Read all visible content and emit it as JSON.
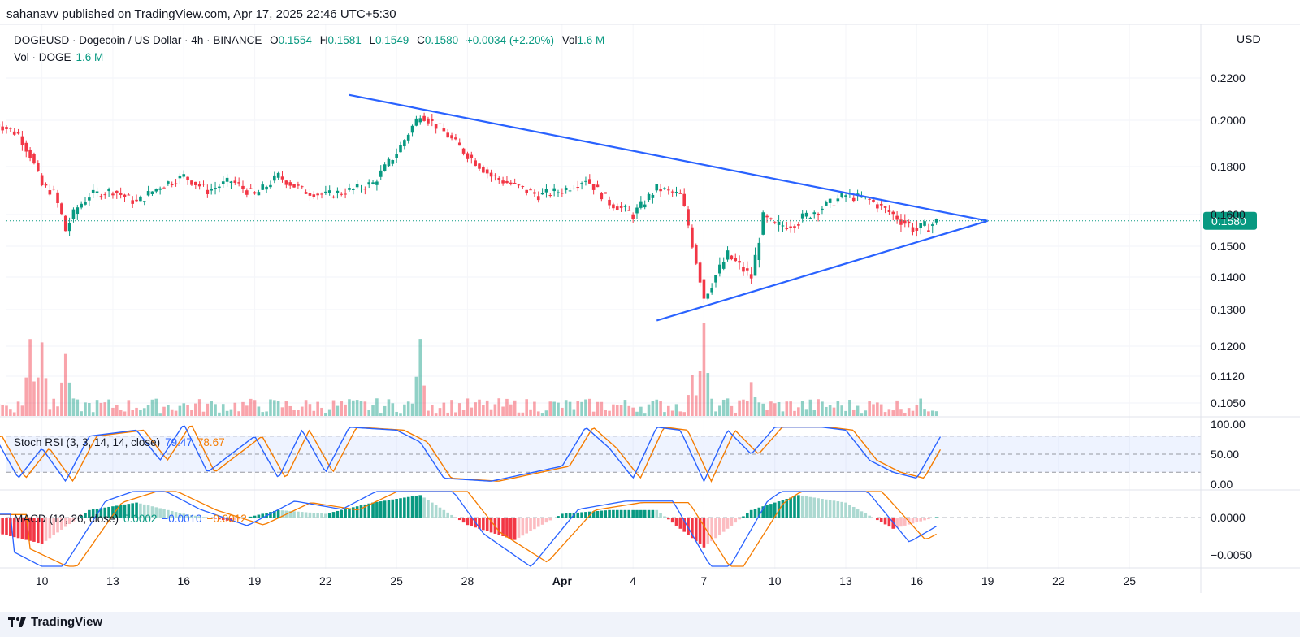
{
  "header": {
    "publisher": "sahanavv published on TradingView.com, Apr 17, 2025 22:46 UTC+5:30",
    "symbol": "DOGEUSD · Dogecoin / US Dollar · 4h · BINANCE",
    "o_label": "O",
    "o_value": "0.1554",
    "h_label": "H",
    "h_value": "0.1581",
    "l_label": "L",
    "l_value": "0.1549",
    "c_label": "C",
    "c_value": "0.1580",
    "change": "+0.0034 (+2.20%)",
    "vol_label": "Vol",
    "vol_value": "1.6 M",
    "vol_line_label": "Vol · DOGE",
    "vol_line_value": "1.6 M",
    "currency": "USD"
  },
  "stoch_rsi": {
    "label": "Stoch RSI (3, 3, 14, 14, close)",
    "k": "79.47",
    "d": "78.67",
    "axis": [
      "100.00",
      "50.00",
      "0.00"
    ]
  },
  "macd": {
    "label": "MACD (12, 26, close)",
    "hist": "0.0002",
    "macd": "−0.0010",
    "signal": "−0.0012",
    "axis": [
      "0.0000",
      "−0.0050"
    ]
  },
  "footer": {
    "brand": "TradingView"
  },
  "colors": {
    "up": "#089981",
    "down": "#f23645",
    "trend": "#2962ff",
    "signal": "#f57c00",
    "last_price_bg": "#089981"
  },
  "chart_data": {
    "type": "candlestick",
    "symbol": "DOGEUSD",
    "interval": "4h",
    "price_axis": [
      "0.2200",
      "0.2000",
      "0.1800",
      "0.1600",
      "0.1500",
      "0.1400",
      "0.1300",
      "0.1200",
      "0.1120",
      "0.1050"
    ],
    "price_axis_values": [
      0.22,
      0.2,
      0.18,
      0.16,
      0.15,
      0.14,
      0.13,
      0.12,
      0.112,
      0.105
    ],
    "x_ticks": [
      "10",
      "13",
      "16",
      "19",
      "22",
      "25",
      "28",
      "Apr",
      "4",
      "7",
      "10",
      "13",
      "16",
      "19",
      "22",
      "25"
    ],
    "last_price": 0.158,
    "last_price_label": "0.1580",
    "path": [
      [
        "2025-03-08",
        0.199
      ],
      [
        "2025-03-09",
        0.194
      ],
      [
        "2025-03-09 12:00",
        0.185
      ],
      [
        "2025-03-10",
        0.172
      ],
      [
        "2025-03-10 12:00",
        0.169
      ],
      [
        "2025-03-11",
        0.155
      ],
      [
        "2025-03-11 12:00",
        0.163
      ],
      [
        "2025-03-12",
        0.168
      ],
      [
        "2025-03-13",
        0.17
      ],
      [
        "2025-03-14",
        0.165
      ],
      [
        "2025-03-15",
        0.172
      ],
      [
        "2025-03-16",
        0.176
      ],
      [
        "2025-03-17",
        0.17
      ],
      [
        "2025-03-18",
        0.174
      ],
      [
        "2025-03-19",
        0.168
      ],
      [
        "2025-03-20",
        0.176
      ],
      [
        "2025-03-21",
        0.17
      ],
      [
        "2025-03-22",
        0.168
      ],
      [
        "2025-03-23",
        0.17
      ],
      [
        "2025-03-24",
        0.173
      ],
      [
        "2025-03-25",
        0.186
      ],
      [
        "2025-03-26",
        0.203
      ],
      [
        "2025-03-27",
        0.195
      ],
      [
        "2025-03-28",
        0.185
      ],
      [
        "2025-03-29",
        0.176
      ],
      [
        "2025-03-30",
        0.172
      ],
      [
        "2025-03-31",
        0.168
      ],
      [
        "2025-04-01",
        0.17
      ],
      [
        "2025-04-02",
        0.175
      ],
      [
        "2025-04-03",
        0.165
      ],
      [
        "2025-04-04",
        0.16
      ],
      [
        "2025-04-05",
        0.171
      ],
      [
        "2025-04-06",
        0.168
      ],
      [
        "2025-04-07",
        0.134
      ],
      [
        "2025-04-08",
        0.147
      ],
      [
        "2025-04-09",
        0.14
      ],
      [
        "2025-04-09 12:00",
        0.159
      ],
      [
        "2025-04-10",
        0.156
      ],
      [
        "2025-04-11",
        0.158
      ],
      [
        "2025-04-12",
        0.163
      ],
      [
        "2025-04-13",
        0.168
      ],
      [
        "2025-04-14",
        0.166
      ],
      [
        "2025-04-15",
        0.16
      ],
      [
        "2025-04-16",
        0.155
      ],
      [
        "2025-04-17",
        0.158
      ]
    ],
    "trendlines": [
      {
        "name": "upper",
        "from": [
          "2025-03-23",
          0.212
        ],
        "to": [
          "2025-04-19",
          0.158
        ]
      },
      {
        "name": "lower",
        "from": [
          "2025-04-05",
          0.127
        ],
        "to": [
          "2025-04-19",
          0.158
        ]
      }
    ],
    "volume_peaks": [
      [
        "2025-03-09 12:00",
        0.9
      ],
      [
        "2025-03-10",
        1.0
      ],
      [
        "2025-03-11",
        0.8
      ],
      [
        "2025-03-26",
        0.8
      ],
      [
        "2025-04-06 12:00",
        0.55
      ],
      [
        "2025-04-07",
        1.0
      ],
      [
        "2025-04-09",
        0.4
      ]
    ],
    "stoch_k_path": [
      [
        "2025-03-08",
        80
      ],
      [
        "2025-03-09",
        10
      ],
      [
        "2025-03-10",
        60
      ],
      [
        "2025-03-11",
        5
      ],
      [
        "2025-03-12",
        80
      ],
      [
        "2025-03-14",
        90
      ],
      [
        "2025-03-15",
        40
      ],
      [
        "2025-03-16",
        100
      ],
      [
        "2025-03-17",
        20
      ],
      [
        "2025-03-19",
        80
      ],
      [
        "2025-03-20",
        10
      ],
      [
        "2025-03-21",
        90
      ],
      [
        "2025-03-22",
        20
      ],
      [
        "2025-03-23",
        95
      ],
      [
        "2025-03-25",
        90
      ],
      [
        "2025-03-26",
        70
      ],
      [
        "2025-03-27",
        10
      ],
      [
        "2025-03-29",
        5
      ],
      [
        "2025-04-01",
        30
      ],
      [
        "2025-04-02",
        95
      ],
      [
        "2025-04-03",
        60
      ],
      [
        "2025-04-04",
        10
      ],
      [
        "2025-04-05",
        95
      ],
      [
        "2025-04-06",
        90
      ],
      [
        "2025-04-07",
        5
      ],
      [
        "2025-04-08",
        90
      ],
      [
        "2025-04-09",
        50
      ],
      [
        "2025-04-10",
        95
      ],
      [
        "2025-04-12",
        95
      ],
      [
        "2025-04-13",
        90
      ],
      [
        "2025-04-14",
        40
      ],
      [
        "2025-04-15",
        20
      ],
      [
        "2025-04-16",
        10
      ],
      [
        "2025-04-17",
        79
      ]
    ],
    "macd_hist_path": [
      [
        "2025-03-08",
        -0.002
      ],
      [
        "2025-03-10",
        -0.0035
      ],
      [
        "2025-03-12",
        0.001
      ],
      [
        "2025-03-14",
        0.002
      ],
      [
        "2025-03-16",
        0.0005
      ],
      [
        "2025-03-18",
        -0.0005
      ],
      [
        "2025-03-20",
        0.001
      ],
      [
        "2025-03-22",
        0.0005
      ],
      [
        "2025-03-24",
        0.002
      ],
      [
        "2025-03-26",
        0.003
      ],
      [
        "2025-03-28",
        -0.001
      ],
      [
        "2025-03-30",
        -0.003
      ],
      [
        "2025-04-01",
        0.0005
      ],
      [
        "2025-04-03",
        0.001
      ],
      [
        "2025-04-05",
        0.001
      ],
      [
        "2025-04-07",
        -0.004
      ],
      [
        "2025-04-09",
        0.001
      ],
      [
        "2025-04-11",
        0.003
      ],
      [
        "2025-04-13",
        0.002
      ],
      [
        "2025-04-15",
        -0.0015
      ],
      [
        "2025-04-17",
        0.0002
      ]
    ]
  }
}
